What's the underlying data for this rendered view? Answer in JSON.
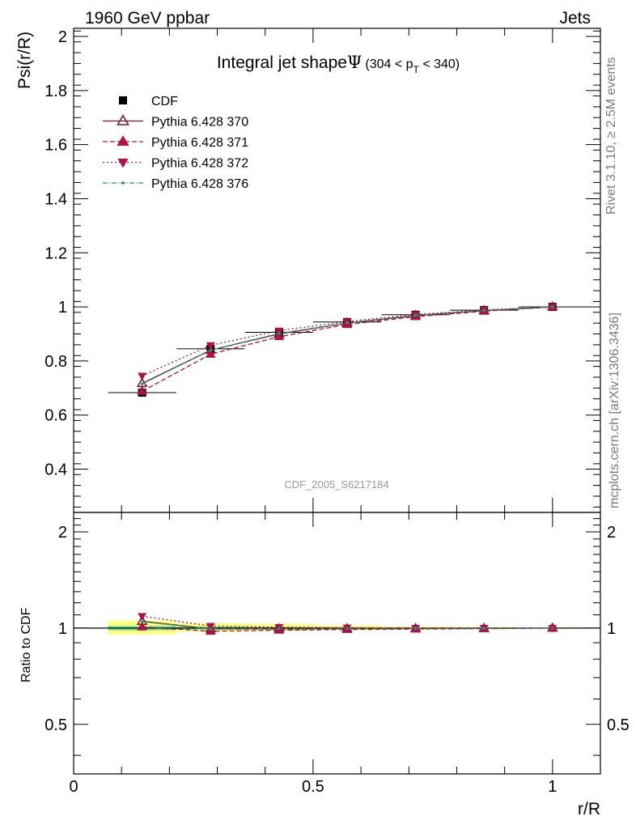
{
  "header": {
    "left_title": "1960 GeV ppbar",
    "right_title": "Jets"
  },
  "side": {
    "rivet": "Rivet 3.1.10, ≥ 2.5M events",
    "mcplots": "mcplots.cern.ch [arXiv:1306.3436]"
  },
  "chart_data": [
    {
      "type": "line",
      "title": "Integral jet shape",
      "title_symbol": "Ψ",
      "title_range": "(304 < p",
      "title_range_sub": "T",
      "title_range_end": " < 340)",
      "ylabel": "Psi(r/R)",
      "analysis_label": "CDF_2005_S6217184",
      "ylim": [
        0.24,
        2.03
      ],
      "xlim": [
        0,
        1.1
      ],
      "yticks": [
        0.4,
        0.6,
        0.8,
        1,
        1.2,
        1.4,
        1.6,
        1.8,
        2
      ],
      "ytick_labels": [
        "0.4",
        "0.6",
        "0.8",
        "1",
        "1.2",
        "1.4",
        "1.6",
        "1.8",
        "2"
      ],
      "legend_placement": "top-left",
      "x": [
        0.143,
        0.286,
        0.429,
        0.571,
        0.714,
        0.857,
        1.0
      ],
      "series": [
        {
          "name": "CDF",
          "values": [
            0.683,
            0.845,
            0.906,
            0.944,
            0.971,
            0.988,
            1.0
          ],
          "color": "#000000",
          "marker": "square",
          "dash": "none",
          "xerr": 0.071,
          "yerr": 0.01
        },
        {
          "name": "Pythia 6.428 370",
          "values": [
            0.717,
            0.84,
            0.9,
            0.94,
            0.968,
            0.986,
            1.0
          ],
          "color": "#7a1020",
          "marker": "triangle-up-open",
          "dash": "solid"
        },
        {
          "name": "Pythia 6.428 371",
          "values": [
            0.688,
            0.825,
            0.89,
            0.935,
            0.964,
            0.984,
            1.0
          ],
          "color": "#b0104a",
          "marker": "triangle-up",
          "dash": "6,3"
        },
        {
          "name": "Pythia 6.428 372",
          "values": [
            0.745,
            0.858,
            0.912,
            0.946,
            0.972,
            0.989,
            1.0
          ],
          "color": "#b0104a",
          "marker": "triangle-down",
          "dash": "2,3"
        },
        {
          "name": "Pythia 6.428 376",
          "values": [
            0.715,
            0.84,
            0.902,
            0.941,
            0.969,
            0.987,
            1.0
          ],
          "color": "#1a9a7a",
          "marker": "dot",
          "dash": "6,2,1,2"
        }
      ]
    },
    {
      "type": "line",
      "ylabel": "Ratio to CDF",
      "xlabel": "r/R",
      "ylim": [
        0.35,
        2.3
      ],
      "log_y": true,
      "yticks_major": [
        0.5,
        1,
        2
      ],
      "ytick_labels": [
        "0.5",
        "1",
        "2"
      ],
      "xticks": [
        0,
        0.5,
        1
      ],
      "xtick_labels": [
        "0",
        "0.5",
        "1"
      ],
      "reference": 1,
      "bands": [
        {
          "x0": 0.072,
          "x1": 0.214,
          "inner": [
            0.985,
            1.015
          ],
          "outer": [
            0.955,
            1.055
          ]
        },
        {
          "x0": 0.214,
          "x1": 0.357,
          "inner": [
            0.99,
            1.01
          ],
          "outer": [
            0.975,
            1.035
          ]
        },
        {
          "x0": 0.357,
          "x1": 0.5,
          "inner": [
            0.993,
            1.007
          ],
          "outer": [
            0.98,
            1.03
          ]
        },
        {
          "x0": 0.5,
          "x1": 0.643,
          "inner": [
            0.995,
            1.005
          ],
          "outer": [
            0.985,
            1.02
          ]
        },
        {
          "x0": 0.643,
          "x1": 0.786,
          "inner": [
            0.996,
            1.004
          ],
          "outer": [
            0.99,
            1.012
          ]
        },
        {
          "x0": 0.786,
          "x1": 0.929,
          "inner": [
            0.997,
            1.003
          ],
          "outer": [
            0.993,
            1.008
          ]
        },
        {
          "x0": 0.929,
          "x1": 1.071,
          "inner": [
            0.998,
            1.002
          ],
          "outer": [
            0.996,
            1.004
          ]
        }
      ],
      "x": [
        0.143,
        0.286,
        0.429,
        0.571,
        0.714,
        0.857,
        1.0
      ],
      "series": [
        {
          "name": "Pythia 6.428 370",
          "values": [
            1.05,
            0.995,
            0.994,
            0.996,
            0.997,
            0.998,
            1.0
          ]
        },
        {
          "name": "Pythia 6.428 371",
          "values": [
            1.008,
            0.978,
            0.985,
            0.99,
            0.993,
            0.996,
            1.0
          ]
        },
        {
          "name": "Pythia 6.428 372",
          "values": [
            1.09,
            1.015,
            1.007,
            1.003,
            1.001,
            1.001,
            1.0
          ]
        },
        {
          "name": "Pythia 6.428 376",
          "values": [
            1.047,
            0.994,
            0.996,
            0.997,
            0.998,
            0.999,
            1.0
          ]
        }
      ]
    }
  ],
  "colors": {
    "band_inner": "#66dd99",
    "band_outer": "#ffff80"
  }
}
